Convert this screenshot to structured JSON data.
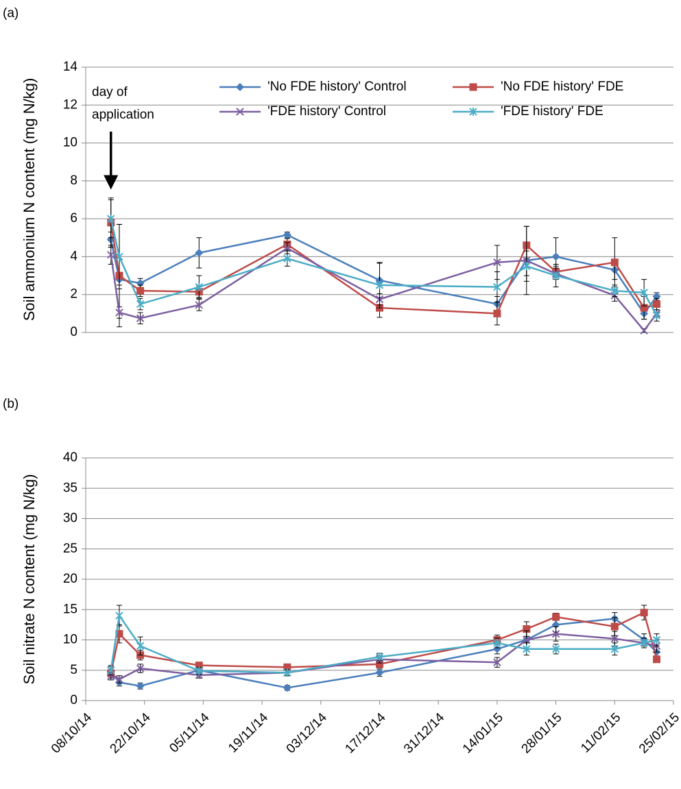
{
  "chart_data": [
    {
      "type": "line",
      "panel_label": "(a)",
      "ylabel": "Soil ammonium N content (mg N/kg)",
      "annotation_lines": [
        "day of",
        "application"
      ],
      "annotation_x": "14/10/14",
      "legend": true,
      "grid": true,
      "x": [
        "14/10/14",
        "16/10/14",
        "21/10/14",
        "04/11/14",
        "25/11/14",
        "17/12/14",
        "14/01/15",
        "21/01/15",
        "28/01/15",
        "11/02/15",
        "18/02/15",
        "21/02/15"
      ],
      "xlim": [
        "08/10/14",
        "25/02/15"
      ],
      "ylim": [
        0,
        14
      ],
      "yticks": [
        0,
        2,
        4,
        6,
        8,
        10,
        12,
        14
      ],
      "series": [
        {
          "name": "'No FDE history' Control",
          "color": "#4a7ebb",
          "marker": "diamond",
          "values": [
            4.9,
            2.8,
            2.6,
            4.2,
            5.15,
            2.75,
            1.5,
            3.8,
            4.0,
            3.3,
            1.0,
            1.9
          ],
          "errors": [
            0.4,
            0.3,
            0.25,
            0.8,
            0.15,
            0.9,
            0.4,
            0.8,
            1.0,
            0.5,
            0.3,
            0.2
          ]
        },
        {
          "name": "'No FDE history' FDE",
          "color": "#be4b48",
          "marker": "square",
          "values": [
            5.8,
            3.0,
            2.2,
            2.15,
            4.65,
            1.3,
            1.0,
            4.6,
            3.2,
            3.7,
            1.3,
            1.5
          ],
          "errors": [
            1.3,
            2.7,
            0.3,
            0.3,
            0.3,
            0.5,
            0.6,
            1.0,
            0.3,
            1.3,
            0.6,
            0.3
          ]
        },
        {
          "name": "'FDE history' Control",
          "color": "#7d5fa0",
          "marker": "x",
          "values": [
            4.1,
            1.05,
            0.75,
            1.45,
            4.45,
            1.75,
            3.7,
            3.8,
            3.1,
            1.95,
            0.1,
            1.0
          ],
          "errors": [
            0.5,
            0.3,
            0.3,
            0.3,
            0.3,
            0.3,
            0.9,
            1.8,
            0.3,
            0.3,
            0.1,
            0.2
          ]
        },
        {
          "name": "'FDE history' FDE",
          "color": "#4bacc6",
          "marker": "star",
          "values": [
            6.0,
            4.0,
            1.5,
            2.4,
            3.9,
            2.5,
            2.4,
            3.5,
            3.0,
            2.2,
            2.1,
            0.9
          ],
          "errors": [
            1.0,
            1.7,
            0.3,
            0.6,
            0.4,
            1.2,
            0.8,
            0.8,
            0.6,
            0.3,
            0.7,
            0.3
          ]
        }
      ]
    },
    {
      "type": "line",
      "panel_label": "(b)",
      "ylabel": "Soil nitrate N content (mg N/kg)",
      "legend": false,
      "grid": true,
      "x": [
        "14/10/14",
        "16/10/14",
        "21/10/14",
        "04/11/14",
        "25/11/14",
        "17/12/14",
        "14/01/15",
        "21/01/15",
        "28/01/15",
        "11/02/15",
        "18/02/15",
        "21/02/15"
      ],
      "xlim": [
        "08/10/14",
        "25/02/15"
      ],
      "xticks": [
        "08/10/14",
        "22/10/14",
        "05/11/14",
        "19/11/14",
        "03/12/14",
        "17/12/14",
        "31/12/14",
        "14/01/15",
        "28/01/15",
        "11/02/15",
        "25/02/15"
      ],
      "ylim": [
        0,
        40
      ],
      "yticks": [
        0,
        5,
        10,
        15,
        20,
        25,
        30,
        35,
        40
      ],
      "series": [
        {
          "color": "#4a7ebb",
          "marker": "diamond",
          "values": [
            4.8,
            3.0,
            2.4,
            5.0,
            2.1,
            4.6,
            8.5,
            10.0,
            12.5,
            13.5,
            10.0,
            8.0
          ],
          "errors": [
            0.8,
            0.6,
            0.5,
            0.6,
            0.4,
            0.6,
            0.8,
            1.5,
            1.2,
            1.0,
            1.0,
            1.0
          ]
        },
        {
          "color": "#be4b48",
          "marker": "square",
          "values": [
            4.5,
            11.0,
            7.5,
            5.8,
            5.5,
            6.0,
            10.0,
            11.8,
            13.8,
            12.2,
            14.5,
            6.8
          ],
          "errors": [
            0.8,
            1.5,
            0.8,
            0.5,
            0.5,
            0.6,
            0.8,
            1.2,
            0.6,
            1.5,
            1.2,
            0.5
          ]
        },
        {
          "color": "#7d5fa0",
          "marker": "x",
          "values": [
            4.0,
            3.5,
            5.3,
            4.2,
            4.6,
            6.8,
            6.3,
            10.0,
            11.0,
            10.2,
            9.5,
            9.0
          ],
          "errors": [
            0.6,
            0.6,
            0.7,
            0.5,
            0.5,
            0.6,
            0.8,
            1.5,
            1.2,
            1.2,
            0.8,
            1.0
          ]
        },
        {
          "color": "#4bacc6",
          "marker": "star",
          "values": [
            5.0,
            14.0,
            9.0,
            4.9,
            4.6,
            7.2,
            9.5,
            8.5,
            8.5,
            8.5,
            9.5,
            10.0
          ],
          "errors": [
            0.8,
            1.7,
            1.5,
            0.6,
            0.5,
            0.6,
            0.8,
            1.0,
            0.8,
            1.0,
            0.8,
            1.0
          ]
        }
      ]
    }
  ]
}
